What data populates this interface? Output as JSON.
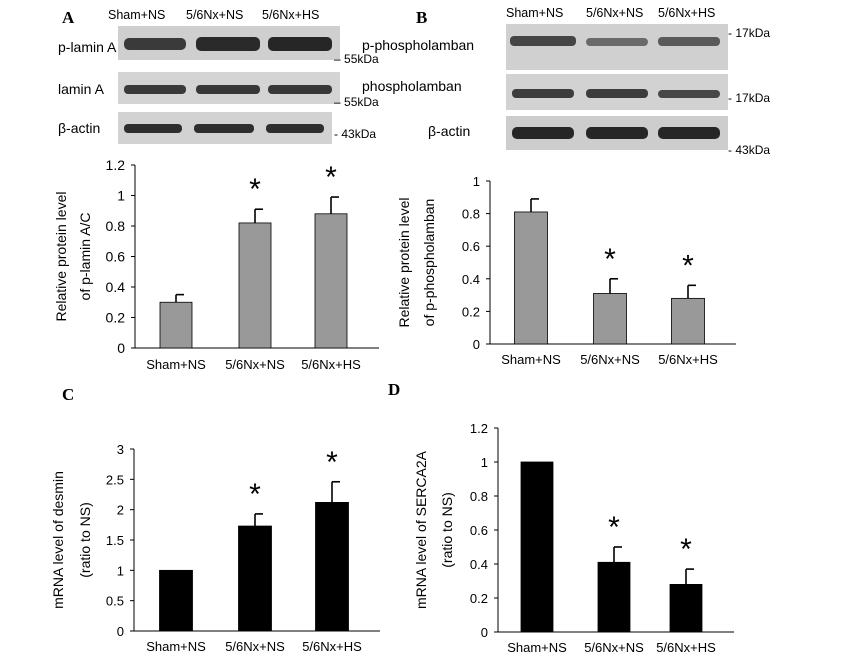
{
  "panels": {
    "A": {
      "letter": "A",
      "lanes": [
        "Sham+NS",
        "5/6Nx+NS",
        "5/6Nx+HS"
      ],
      "blots": [
        {
          "label": "p-lamin A",
          "marker": "55kDa"
        },
        {
          "label": "lamin A",
          "marker": "55kDa"
        },
        {
          "label": "β-actin",
          "marker": "43kDa"
        }
      ]
    },
    "B": {
      "letter": "B",
      "lanes": [
        "Sham+NS",
        "5/6Nx+NS",
        "5/6Nx+HS"
      ],
      "blots": [
        {
          "label": "p-phospholamban",
          "marker": "17kDa"
        },
        {
          "label": "phospholamban",
          "marker": "17kDa"
        },
        {
          "label": "β-actin",
          "marker": "43kDa"
        }
      ]
    },
    "C": {
      "letter": "C"
    },
    "D": {
      "letter": "D"
    }
  },
  "chart_data": [
    {
      "panel": "A",
      "type": "bar",
      "categories": [
        "Sham+NS",
        "5/6Nx+NS",
        "5/6Nx+HS"
      ],
      "values": [
        0.3,
        0.82,
        0.88
      ],
      "errors": [
        0.05,
        0.09,
        0.11
      ],
      "significance": [
        "",
        "*",
        "*"
      ],
      "ylabel_lines": [
        "Relative protein level",
        "of p-lamin A/C"
      ],
      "ylim": [
        0,
        1.2
      ],
      "yticks": [
        "0",
        "0.2",
        "0.4",
        "0.6",
        "0.8",
        "1",
        "1.2"
      ],
      "bar_color": "#999999"
    },
    {
      "panel": "B",
      "type": "bar",
      "categories": [
        "Sham+NS",
        "5/6Nx+NS",
        "5/6Nx+HS"
      ],
      "values": [
        0.81,
        0.31,
        0.28
      ],
      "errors": [
        0.08,
        0.09,
        0.08
      ],
      "significance": [
        "",
        "*",
        "*"
      ],
      "ylabel_lines": [
        "Relative protein level",
        "of p-phospholamban"
      ],
      "ylim": [
        0,
        1
      ],
      "yticks": [
        "0",
        "0.2",
        "0.4",
        "0.6",
        "0.8",
        "1"
      ],
      "bar_color": "#999999"
    },
    {
      "panel": "C",
      "type": "bar",
      "categories": [
        "Sham+NS",
        "5/6Nx+NS",
        "5/6Nx+HS"
      ],
      "values": [
        1.0,
        1.73,
        2.12
      ],
      "errors": [
        0.0,
        0.2,
        0.34
      ],
      "significance": [
        "",
        "*",
        "*"
      ],
      "ylabel_lines": [
        "mRNA level of desmin",
        "(ratio to NS)"
      ],
      "ylim": [
        0,
        3
      ],
      "yticks": [
        "0",
        "0.5",
        "1",
        "1.5",
        "2",
        "2.5",
        "3"
      ],
      "bar_color": "#000000"
    },
    {
      "panel": "D",
      "type": "bar",
      "categories": [
        "Sham+NS",
        "5/6Nx+NS",
        "5/6Nx+HS"
      ],
      "values": [
        1.0,
        0.41,
        0.28
      ],
      "errors": [
        0.0,
        0.09,
        0.09
      ],
      "significance": [
        "",
        "*",
        "*"
      ],
      "ylabel_lines": [
        "mRNA level of SERCA2A",
        "(ratio to NS)"
      ],
      "ylim": [
        0,
        1.2
      ],
      "yticks": [
        "0",
        "0.2",
        "0.4",
        "0.6",
        "0.8",
        "1",
        "1.2"
      ],
      "bar_color": "#000000"
    }
  ]
}
